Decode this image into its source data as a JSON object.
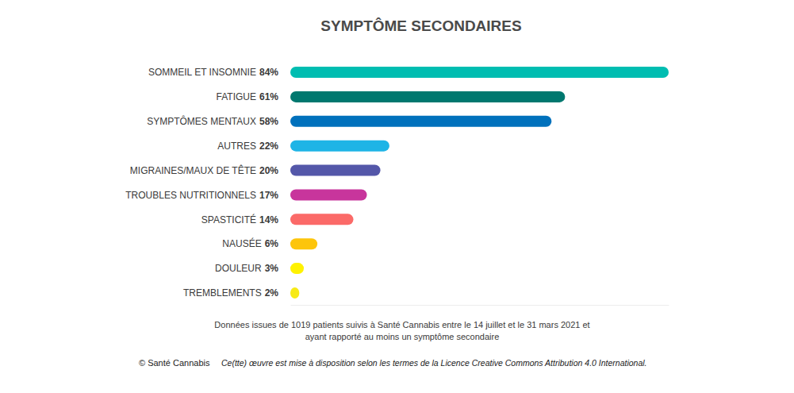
{
  "chart_data": {
    "type": "bar",
    "orientation": "horizontal",
    "title": "SYMPTÔME SECONDAIRES",
    "categories": [
      "SOMMEIL ET INSOMNIE",
      "FATIGUE",
      "SYMPTÔMES MENTAUX",
      "AUTRES",
      "MIGRAINES/MAUX DE TÊTE",
      "TROUBLES NUTRITIONNELS",
      "SPASTICITÉ",
      "NAUSÉE",
      "DOULEUR",
      "TREMBLEMENTS"
    ],
    "values": [
      84,
      61,
      58,
      22,
      20,
      17,
      14,
      6,
      3,
      2
    ],
    "value_labels": [
      "84%",
      "61%",
      "58%",
      "22%",
      "20%",
      "17%",
      "14%",
      "6%",
      "3%",
      "2%"
    ],
    "data_labels": true,
    "colors": [
      "#00bdb1",
      "#00786f",
      "#0071bc",
      "#1eb4e6",
      "#5457a9",
      "#c8359c",
      "#fb6a68",
      "#fdc50b",
      "#fff200",
      "#f7ea16"
    ],
    "xlim": [
      0,
      84
    ],
    "tick_labels": false,
    "grid": false,
    "annotations": [
      "Données issues de 1019 patients suivis à Santé Cannabis entre le 14 juillet et le 31 mars 2021 et",
      "ayant rapporté au moins un symptôme secondaire",
      "© Santé Cannabis",
      "Ce(tte) œuvre est mise à disposition selon les termes de la Licence Creative Commons Attribution 4.0 International."
    ]
  }
}
